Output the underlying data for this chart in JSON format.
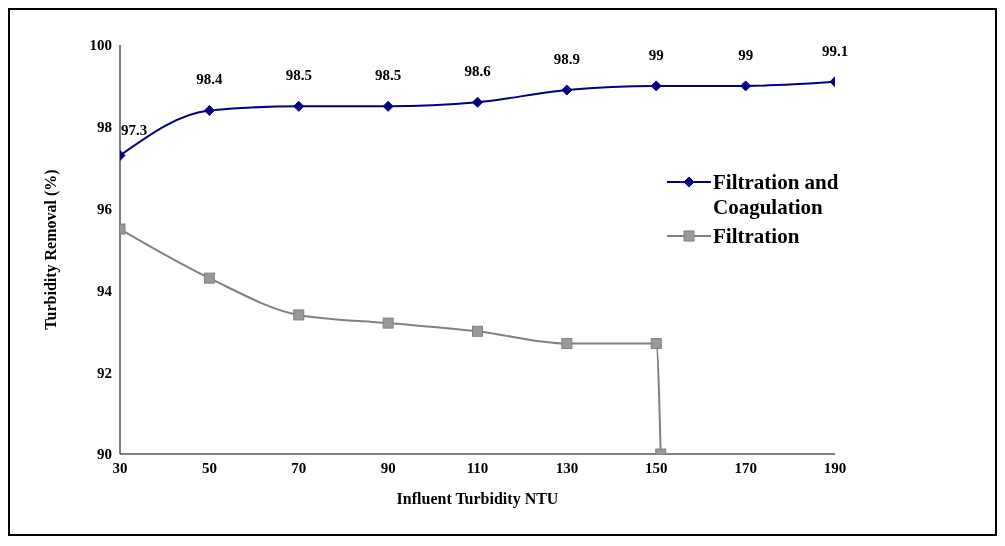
{
  "chart_data": {
    "type": "line",
    "xlabel": "Influent Turbidity NTU",
    "ylabel": "Turbidity Removal (%)",
    "xlim": [
      30,
      190
    ],
    "xticks": [
      30,
      50,
      70,
      90,
      110,
      130,
      150,
      170,
      190
    ],
    "ylim": [
      90,
      100
    ],
    "yticks": [
      90,
      92,
      94,
      96,
      98,
      100
    ],
    "series": [
      {
        "name": "Filtration and Coagulation",
        "color": "#000080",
        "marker": "diamond",
        "x": [
          30,
          50,
          70,
          90,
          110,
          130,
          150,
          170,
          190
        ],
        "values": [
          97.3,
          98.4,
          98.5,
          98.5,
          98.6,
          98.9,
          99,
          99,
          99.1
        ],
        "value_labels": [
          "97.3",
          "98.4",
          "98.5",
          "98.5",
          "98.6",
          "98.9",
          "99",
          "99",
          "99.1"
        ]
      },
      {
        "name": "Filtration",
        "color": "#808080",
        "marker": "square",
        "x": [
          30,
          50,
          70,
          90,
          110,
          130,
          150,
          151
        ],
        "values": [
          95.5,
          94.3,
          93.4,
          93.2,
          93.0,
          92.7,
          92.7,
          90
        ]
      }
    ],
    "legend": "right",
    "line_style": "solid"
  }
}
